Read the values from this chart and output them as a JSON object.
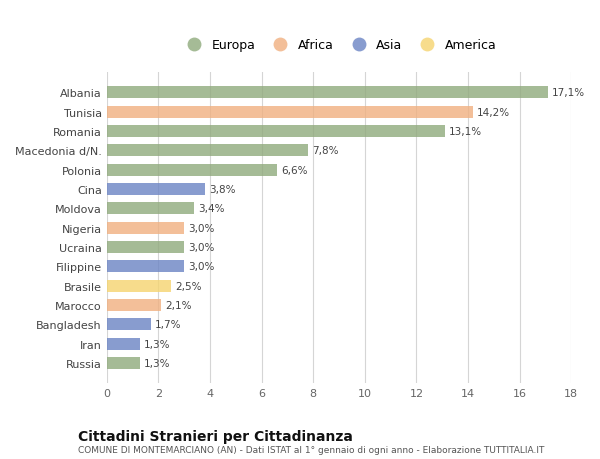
{
  "categories": [
    "Russia",
    "Iran",
    "Bangladesh",
    "Marocco",
    "Brasile",
    "Filippine",
    "Ucraina",
    "Nigeria",
    "Moldova",
    "Cina",
    "Polonia",
    "Macedonia d/N.",
    "Romania",
    "Tunisia",
    "Albania"
  ],
  "values": [
    1.3,
    1.3,
    1.7,
    2.1,
    2.5,
    3.0,
    3.0,
    3.0,
    3.4,
    3.8,
    6.6,
    7.8,
    13.1,
    14.2,
    17.1
  ],
  "labels": [
    "1,3%",
    "1,3%",
    "1,7%",
    "2,1%",
    "2,5%",
    "3,0%",
    "3,0%",
    "3,0%",
    "3,4%",
    "3,8%",
    "6,6%",
    "7,8%",
    "13,1%",
    "14,2%",
    "17,1%"
  ],
  "colors": [
    "#8faa7c",
    "#6b84c4",
    "#6b84c4",
    "#f0b080",
    "#f5d470",
    "#6b84c4",
    "#8faa7c",
    "#f0b080",
    "#8faa7c",
    "#6b84c4",
    "#8faa7c",
    "#8faa7c",
    "#8faa7c",
    "#f0b080",
    "#8faa7c"
  ],
  "legend": [
    {
      "label": "Europa",
      "color": "#8faa7c"
    },
    {
      "label": "Africa",
      "color": "#f0b080"
    },
    {
      "label": "Asia",
      "color": "#6b84c4"
    },
    {
      "label": "America",
      "color": "#f5d470"
    }
  ],
  "xlim": [
    0,
    18
  ],
  "xticks": [
    0,
    2,
    4,
    6,
    8,
    10,
    12,
    14,
    16,
    18
  ],
  "title": "Cittadini Stranieri per Cittadinanza",
  "subtitle": "COMUNE DI MONTEMARCIANO (AN) - Dati ISTAT al 1° gennaio di ogni anno - Elaborazione TUTTITALIA.IT",
  "bg_color": "#ffffff",
  "grid_color": "#d5d5d5",
  "bar_alpha": 0.8,
  "bar_height": 0.62
}
